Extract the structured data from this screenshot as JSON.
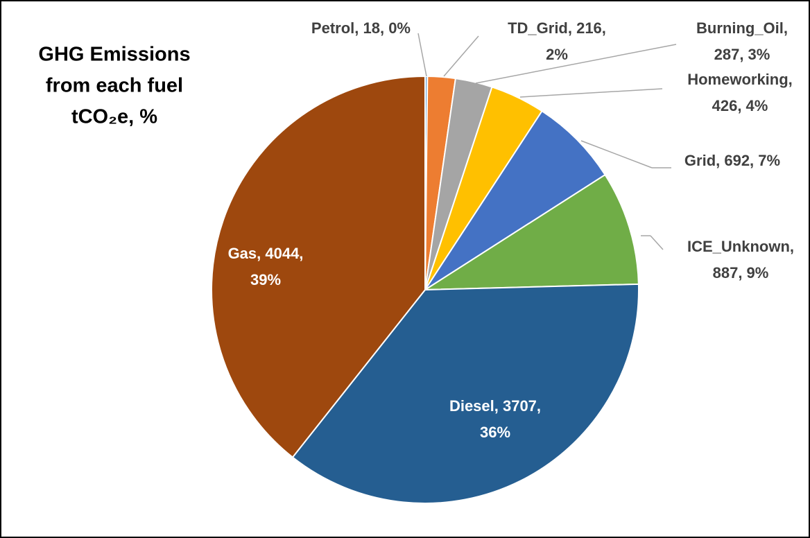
{
  "chart_data": {
    "type": "pie",
    "title": [
      "GHG Emissions",
      "from each fuel",
      "tCO₂e, %"
    ],
    "categories": [
      "Petrol",
      "TD_Grid",
      "Burning_Oil",
      "Homeworking",
      "Grid",
      "ICE_Unknown",
      "Diesel",
      "Gas"
    ],
    "values": [
      18,
      216,
      287,
      426,
      692,
      887,
      3707,
      4044
    ],
    "value_labels": [
      [
        "Petrol, 18, 0%"
      ],
      [
        "TD_Grid, 216,",
        "2%"
      ],
      [
        "Burning_Oil,",
        "287, 3%"
      ],
      [
        "Homeworking,",
        "426, 4%"
      ],
      [
        "Grid, 692, 7%"
      ],
      [
        "ICE_Unknown,",
        "887, 9%"
      ],
      [
        "Diesel, 3707,",
        "36%"
      ],
      [
        "Gas, 4044,",
        "39%"
      ]
    ],
    "colors": [
      "#5b9bd5",
      "#ed7d31",
      "#a5a5a5",
      "#ffc000",
      "#4472c4",
      "#70ad47",
      "#255e91",
      "#9e480e"
    ]
  }
}
